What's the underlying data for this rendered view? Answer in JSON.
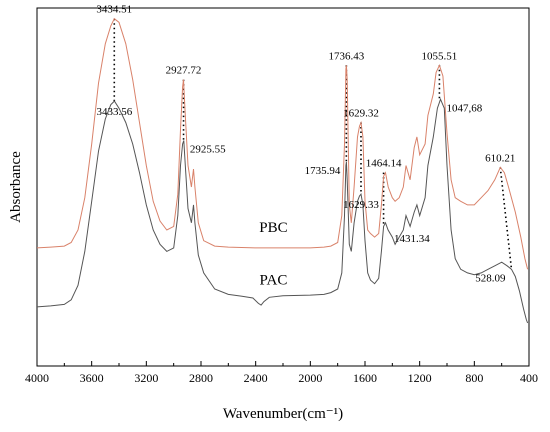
{
  "chart_data": {
    "type": "line",
    "title": "",
    "xlabel": "Wavenumber(cm⁻¹)",
    "ylabel": "Absorbance",
    "xlim": [
      4000,
      400
    ],
    "x_reversed": true,
    "ylim": [
      0,
      1
    ],
    "x_ticks": [
      4000,
      3600,
      3200,
      2800,
      2400,
      2000,
      1600,
      1200,
      800,
      400
    ],
    "grid": false,
    "series": [
      {
        "name": "PBC",
        "color": "#d9826a",
        "points": [
          [
            4000,
            0.33
          ],
          [
            3900,
            0.332
          ],
          [
            3800,
            0.335
          ],
          [
            3750,
            0.345
          ],
          [
            3700,
            0.38
          ],
          [
            3650,
            0.47
          ],
          [
            3600,
            0.62
          ],
          [
            3550,
            0.79
          ],
          [
            3500,
            0.9
          ],
          [
            3460,
            0.95
          ],
          [
            3434.51,
            0.97
          ],
          [
            3400,
            0.96
          ],
          [
            3350,
            0.9
          ],
          [
            3300,
            0.8
          ],
          [
            3250,
            0.68
          ],
          [
            3200,
            0.56
          ],
          [
            3150,
            0.46
          ],
          [
            3100,
            0.405
          ],
          [
            3050,
            0.38
          ],
          [
            3000,
            0.39
          ],
          [
            2970,
            0.48
          ],
          [
            2950,
            0.66
          ],
          [
            2935,
            0.78
          ],
          [
            2927.72,
            0.8
          ],
          [
            2915,
            0.7
          ],
          [
            2895,
            0.56
          ],
          [
            2870,
            0.5
          ],
          [
            2855,
            0.55
          ],
          [
            2845,
            0.5
          ],
          [
            2820,
            0.4
          ],
          [
            2780,
            0.35
          ],
          [
            2700,
            0.335
          ],
          [
            2600,
            0.332
          ],
          [
            2400,
            0.33
          ],
          [
            2200,
            0.33
          ],
          [
            2000,
            0.33
          ],
          [
            1900,
            0.332
          ],
          [
            1850,
            0.335
          ],
          [
            1800,
            0.345
          ],
          [
            1770,
            0.42
          ],
          [
            1750,
            0.62
          ],
          [
            1740,
            0.83
          ],
          [
            1736.43,
            0.84
          ],
          [
            1730,
            0.8
          ],
          [
            1715,
            0.45
          ],
          [
            1700,
            0.4
          ],
          [
            1680,
            0.5
          ],
          [
            1655,
            0.64
          ],
          [
            1640,
            0.67
          ],
          [
            1629.32,
            0.68
          ],
          [
            1615,
            0.64
          ],
          [
            1600,
            0.46
          ],
          [
            1580,
            0.38
          ],
          [
            1560,
            0.37
          ],
          [
            1530,
            0.36
          ],
          [
            1500,
            0.37
          ],
          [
            1480,
            0.45
          ],
          [
            1464.14,
            0.53
          ],
          [
            1450,
            0.54
          ],
          [
            1430,
            0.5
          ],
          [
            1400,
            0.47
          ],
          [
            1380,
            0.46
          ],
          [
            1350,
            0.47
          ],
          [
            1320,
            0.5
          ],
          [
            1300,
            0.56
          ],
          [
            1270,
            0.52
          ],
          [
            1240,
            0.61
          ],
          [
            1220,
            0.64
          ],
          [
            1200,
            0.59
          ],
          [
            1160,
            0.62
          ],
          [
            1140,
            0.7
          ],
          [
            1100,
            0.76
          ],
          [
            1080,
            0.82
          ],
          [
            1055.51,
            0.84
          ],
          [
            1030,
            0.81
          ],
          [
            1000,
            0.65
          ],
          [
            970,
            0.52
          ],
          [
            940,
            0.47
          ],
          [
            900,
            0.46
          ],
          [
            850,
            0.45
          ],
          [
            800,
            0.45
          ],
          [
            750,
            0.47
          ],
          [
            700,
            0.49
          ],
          [
            650,
            0.52
          ],
          [
            610.21,
            0.555
          ],
          [
            580,
            0.54
          ],
          [
            550,
            0.5
          ],
          [
            500,
            0.43
          ],
          [
            460,
            0.36
          ],
          [
            430,
            0.3
          ],
          [
            410,
            0.27
          ]
        ]
      },
      {
        "name": "PAC",
        "color": "#555555",
        "points": [
          [
            4000,
            0.165
          ],
          [
            3900,
            0.168
          ],
          [
            3800,
            0.172
          ],
          [
            3750,
            0.185
          ],
          [
            3700,
            0.225
          ],
          [
            3650,
            0.32
          ],
          [
            3600,
            0.46
          ],
          [
            3550,
            0.6
          ],
          [
            3500,
            0.69
          ],
          [
            3460,
            0.73
          ],
          [
            3433.56,
            0.74
          ],
          [
            3400,
            0.72
          ],
          [
            3350,
            0.68
          ],
          [
            3300,
            0.62
          ],
          [
            3250,
            0.54
          ],
          [
            3200,
            0.45
          ],
          [
            3150,
            0.38
          ],
          [
            3100,
            0.34
          ],
          [
            3050,
            0.32
          ],
          [
            3000,
            0.33
          ],
          [
            2970,
            0.42
          ],
          [
            2950,
            0.56
          ],
          [
            2935,
            0.62
          ],
          [
            2925.55,
            0.63
          ],
          [
            2915,
            0.56
          ],
          [
            2895,
            0.44
          ],
          [
            2870,
            0.4
          ],
          [
            2855,
            0.45
          ],
          [
            2845,
            0.4
          ],
          [
            2820,
            0.31
          ],
          [
            2780,
            0.26
          ],
          [
            2700,
            0.215
          ],
          [
            2600,
            0.2
          ],
          [
            2500,
            0.195
          ],
          [
            2420,
            0.19
          ],
          [
            2380,
            0.175
          ],
          [
            2360,
            0.17
          ],
          [
            2340,
            0.18
          ],
          [
            2300,
            0.192
          ],
          [
            2200,
            0.196
          ],
          [
            2000,
            0.198
          ],
          [
            1900,
            0.2
          ],
          [
            1850,
            0.205
          ],
          [
            1800,
            0.215
          ],
          [
            1770,
            0.26
          ],
          [
            1750,
            0.42
          ],
          [
            1740,
            0.56
          ],
          [
            1735.94,
            0.57
          ],
          [
            1730,
            0.52
          ],
          [
            1715,
            0.34
          ],
          [
            1700,
            0.32
          ],
          [
            1680,
            0.4
          ],
          [
            1655,
            0.46
          ],
          [
            1640,
            0.475
          ],
          [
            1629.33,
            0.48
          ],
          [
            1615,
            0.45
          ],
          [
            1600,
            0.35
          ],
          [
            1580,
            0.26
          ],
          [
            1560,
            0.24
          ],
          [
            1530,
            0.23
          ],
          [
            1500,
            0.245
          ],
          [
            1480,
            0.32
          ],
          [
            1464.14,
            0.39
          ],
          [
            1450,
            0.4
          ],
          [
            1431.34,
            0.38
          ],
          [
            1400,
            0.36
          ],
          [
            1380,
            0.34
          ],
          [
            1350,
            0.36
          ],
          [
            1320,
            0.38
          ],
          [
            1300,
            0.42
          ],
          [
            1270,
            0.39
          ],
          [
            1240,
            0.43
          ],
          [
            1220,
            0.45
          ],
          [
            1200,
            0.42
          ],
          [
            1160,
            0.47
          ],
          [
            1140,
            0.56
          ],
          [
            1100,
            0.64
          ],
          [
            1070,
            0.72
          ],
          [
            1047.68,
            0.745
          ],
          [
            1020,
            0.72
          ],
          [
            1000,
            0.56
          ],
          [
            970,
            0.38
          ],
          [
            940,
            0.3
          ],
          [
            900,
            0.27
          ],
          [
            850,
            0.26
          ],
          [
            800,
            0.255
          ],
          [
            750,
            0.26
          ],
          [
            700,
            0.27
          ],
          [
            650,
            0.28
          ],
          [
            600,
            0.29
          ],
          [
            560,
            0.28
          ],
          [
            528.09,
            0.27
          ],
          [
            500,
            0.25
          ],
          [
            470,
            0.21
          ],
          [
            440,
            0.16
          ],
          [
            420,
            0.13
          ],
          [
            410,
            0.12
          ]
        ]
      }
    ],
    "series_labels": [
      {
        "text": "PBC",
        "x": 2270,
        "y": 0.375
      },
      {
        "text": "PAC",
        "x": 2270,
        "y": 0.228
      }
    ],
    "annotations": [
      {
        "text": "3434.51",
        "x": 3434.51,
        "y": 0.97,
        "pos": "above"
      },
      {
        "text": "3433.56",
        "x": 3433.56,
        "y": 0.74,
        "pos": "below"
      },
      {
        "text": "2927.72",
        "x": 2927.72,
        "y": 0.8,
        "pos": "above"
      },
      {
        "text": "2925.55",
        "x": 2925.55,
        "y": 0.63,
        "pos": "right"
      },
      {
        "text": "1736.43",
        "x": 1736.43,
        "y": 0.84,
        "pos": "above"
      },
      {
        "text": "1735.94",
        "x": 1735.94,
        "y": 0.57,
        "pos": "left"
      },
      {
        "text": "1629.32",
        "x": 1629.32,
        "y": 0.68,
        "pos": "above"
      },
      {
        "text": "1629.33",
        "x": 1629.33,
        "y": 0.48,
        "pos": "below"
      },
      {
        "text": "1464.14",
        "x": 1464.14,
        "y": 0.54,
        "pos": "above"
      },
      {
        "text": "1431.34",
        "x": 1431.34,
        "y": 0.38,
        "pos": "right"
      },
      {
        "text": "1055.51",
        "x": 1055.51,
        "y": 0.84,
        "pos": "above"
      },
      {
        "text": "1047,68",
        "x": 1047.68,
        "y": 0.745,
        "pos": "right"
      },
      {
        "text": "610.21",
        "x": 610.21,
        "y": 0.555,
        "pos": "above"
      },
      {
        "text": "528.09",
        "x": 528.09,
        "y": 0.27,
        "pos": "left"
      }
    ],
    "dotted_lines": [
      {
        "x": 3434.51,
        "from": 0.97,
        "to": 0.74
      },
      {
        "x": 2927.72,
        "from": 0.8,
        "to": 0.63
      },
      {
        "x": 1736.43,
        "from": 0.84,
        "to": 0.57
      },
      {
        "x": 1629.32,
        "from": 0.68,
        "to": 0.48
      },
      {
        "x": 1464.14,
        "from": 0.54,
        "to": 0.39
      },
      {
        "x": 1055.51,
        "from": 0.84,
        "to": 0.745
      },
      {
        "x1": 610.21,
        "y1": 0.555,
        "x2": 528.09,
        "y2": 0.27
      }
    ]
  }
}
